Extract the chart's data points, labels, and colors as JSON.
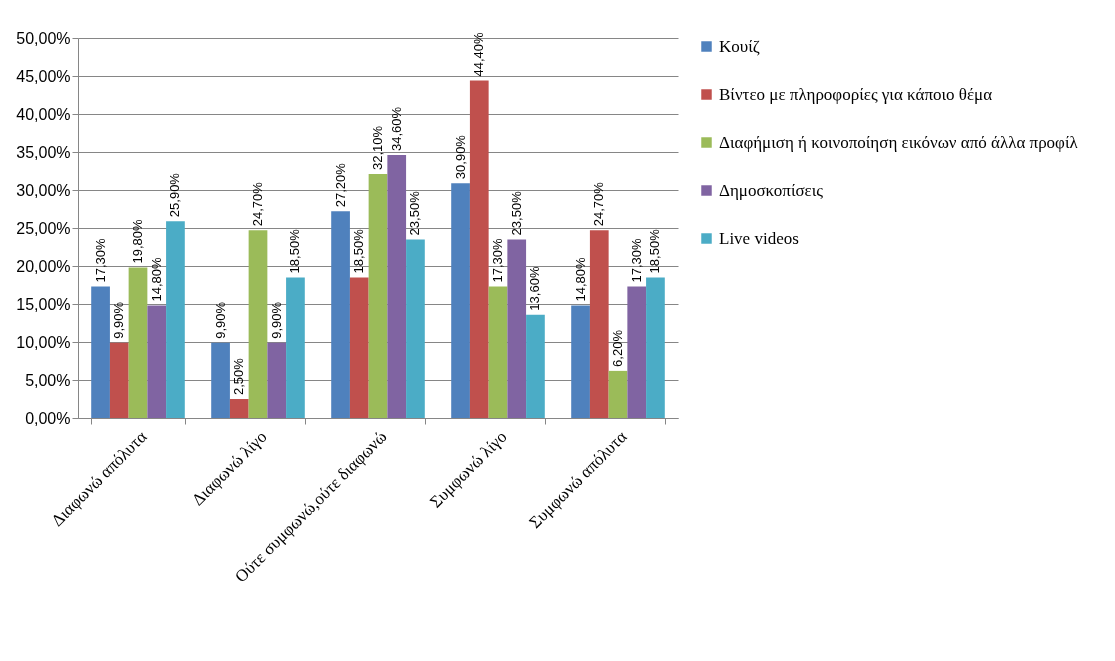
{
  "chart_data": {
    "type": "bar",
    "categories": [
      "Διαφωνώ απόλυτα",
      "Διαφωνώ λίγο",
      "Ούτε συμφωνώ,ούτε διαφωνώ",
      "Συμφωνώ λίγο",
      "Συμφωνώ απόλυτα"
    ],
    "series": [
      {
        "name": "Κουίζ",
        "color": "#4f81bd",
        "values": [
          17.3,
          9.9,
          27.2,
          30.9,
          14.8
        ],
        "value_labels": [
          "17,30%",
          "9,90%",
          "27,20%",
          "30,90%",
          "14,80%"
        ]
      },
      {
        "name": "Βίντεο με πληροφορίες για κάποιο θέμα",
        "color": "#c0504d",
        "values": [
          9.9,
          2.5,
          18.5,
          44.4,
          24.7
        ],
        "value_labels": [
          "9,90%",
          "2,50%",
          "18,50%",
          "44,40%",
          "24,70%"
        ]
      },
      {
        "name": "Διαφήμιση ή κοινοποίηση εικόνων από άλλα προφίλ",
        "color": "#9bbb59",
        "values": [
          19.8,
          24.7,
          32.1,
          17.3,
          6.2
        ],
        "value_labels": [
          "19,80%",
          "24,70%",
          "32,10%",
          "17,30%",
          "6,20%"
        ]
      },
      {
        "name": "Δημοσκοπίσεις",
        "color": "#8064a2",
        "values": [
          14.8,
          9.9,
          34.6,
          23.5,
          17.3
        ],
        "value_labels": [
          "14,80%",
          "9,90%",
          "34,60%",
          "23,50%",
          "17,30%"
        ]
      },
      {
        "name": "Live videos",
        "color": "#4bacc6",
        "values": [
          25.9,
          18.5,
          23.5,
          13.6,
          18.5
        ],
        "value_labels": [
          "25,90%",
          "18,50%",
          "23,50%",
          "13,60%",
          "18,50%"
        ]
      }
    ],
    "ylim": [
      0,
      50
    ],
    "yticks": [
      {
        "value": 0,
        "label": "0,00%"
      },
      {
        "value": 5,
        "label": "5,00%"
      },
      {
        "value": 10,
        "label": "10,00%"
      },
      {
        "value": 15,
        "label": "15,00%"
      },
      {
        "value": 20,
        "label": "20,00%"
      },
      {
        "value": 25,
        "label": "25,00%"
      },
      {
        "value": 30,
        "label": "30,00%"
      },
      {
        "value": 35,
        "label": "35,00%"
      },
      {
        "value": 40,
        "label": "40,00%"
      },
      {
        "value": 45,
        "label": "45,00%"
      },
      {
        "value": 50,
        "label": "50,00%"
      }
    ],
    "grid": "y",
    "legend": "right"
  }
}
